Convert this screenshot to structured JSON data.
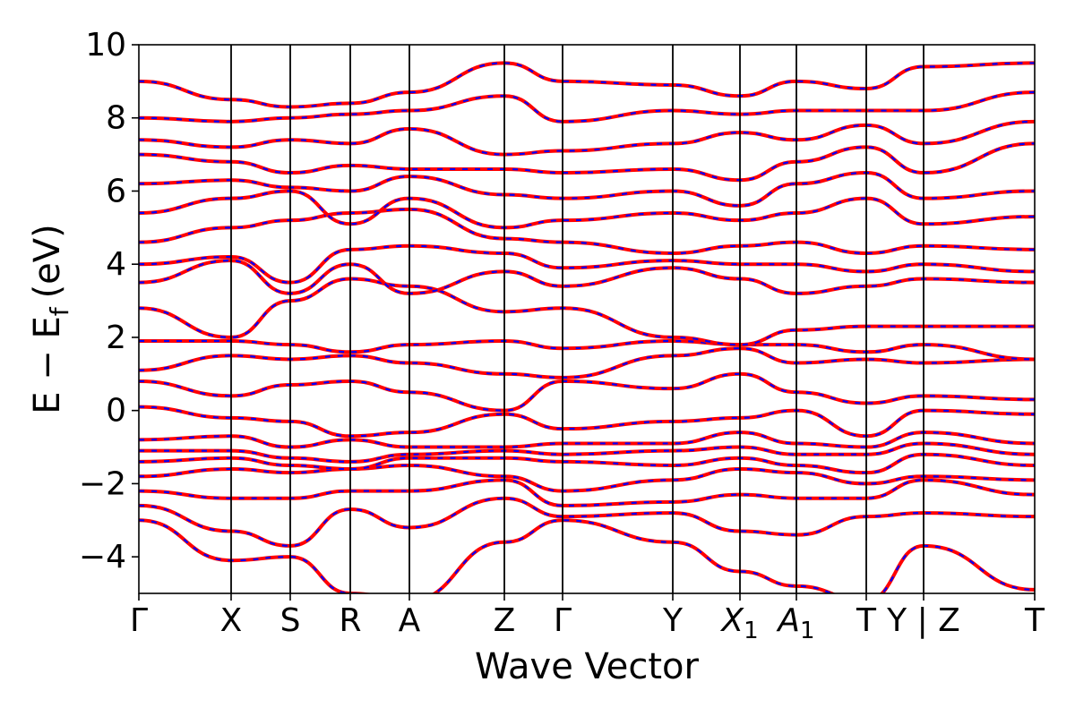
{
  "chart_data": {
    "type": "line",
    "title": "",
    "xlabel": "Wave Vector",
    "ylabel_main": "E − E",
    "ylabel_sub": "f",
    "ylabel_unit": "(eV)",
    "ylim": [
      -5,
      10
    ],
    "yticks": [
      -4,
      -2,
      0,
      2,
      4,
      6,
      8,
      10
    ],
    "ytick_labels": [
      "−4",
      "−2",
      "0",
      "2",
      "4",
      "6",
      "8",
      "10"
    ],
    "xlim": [
      0,
      1
    ],
    "grid": false,
    "legend": "none",
    "kpoints": [
      {
        "label": "Γ",
        "sub": "",
        "x": 0.0
      },
      {
        "label": "X",
        "sub": "",
        "x": 0.103
      },
      {
        "label": "S",
        "sub": "",
        "x": 0.169
      },
      {
        "label": "R",
        "sub": "",
        "x": 0.236
      },
      {
        "label": "A",
        "sub": "",
        "x": 0.302
      },
      {
        "label": "Z",
        "sub": "",
        "x": 0.408
      },
      {
        "label": "Γ",
        "sub": "",
        "x": 0.473
      },
      {
        "label": "Y",
        "sub": "",
        "x": 0.596
      },
      {
        "label": "X",
        "sub": "1",
        "x": 0.671
      },
      {
        "label": "A",
        "sub": "1",
        "x": 0.734
      },
      {
        "label": "T",
        "sub": "",
        "x": 0.812
      },
      {
        "label": "Y | Z",
        "sub": "",
        "x": 0.876
      },
      {
        "label": "T",
        "sub": "",
        "x": 1.0
      }
    ],
    "series_colors": {
      "dft": "#ff0000",
      "model": "#0000ff"
    },
    "bands": [
      {
        "x": [
          0,
          0.103,
          0.169,
          0.236,
          0.302,
          0.408,
          0.473,
          0.596,
          0.671,
          0.734,
          0.812,
          0.876,
          1.0
        ],
        "y": [
          -3.0,
          -4.1,
          -4.0,
          -5.0,
          -5.2,
          -3.6,
          -3.0,
          -3.6,
          -4.4,
          -4.8,
          -5.2,
          -3.7,
          -4.9
        ]
      },
      {
        "x": [
          0,
          0.103,
          0.169,
          0.236,
          0.302,
          0.408,
          0.473,
          0.596,
          0.671,
          0.734,
          0.812,
          0.876,
          1.0
        ],
        "y": [
          -2.6,
          -3.3,
          -3.7,
          -2.7,
          -3.2,
          -2.4,
          -2.9,
          -2.8,
          -3.3,
          -3.4,
          -2.9,
          -2.8,
          -2.9
        ]
      },
      {
        "x": [
          0,
          0.103,
          0.169,
          0.236,
          0.302,
          0.408,
          0.473,
          0.596,
          0.671,
          0.734,
          0.812,
          0.876,
          1.0
        ],
        "y": [
          -2.2,
          -2.4,
          -2.4,
          -2.2,
          -2.2,
          -1.9,
          -2.6,
          -2.5,
          -2.3,
          -2.4,
          -2.4,
          -1.9,
          -2.3
        ]
      },
      {
        "x": [
          0,
          0.103,
          0.169,
          0.236,
          0.302,
          0.408,
          0.473,
          0.596,
          0.671,
          0.734,
          0.812,
          0.876,
          1.0
        ],
        "y": [
          -1.8,
          -1.6,
          -1.7,
          -1.6,
          -1.5,
          -1.8,
          -2.2,
          -1.9,
          -1.6,
          -1.7,
          -2.0,
          -1.8,
          -1.9
        ]
      },
      {
        "x": [
          0,
          0.103,
          0.169,
          0.236,
          0.302,
          0.408,
          0.473,
          0.596,
          0.671,
          0.734,
          0.812,
          0.876,
          1.0
        ],
        "y": [
          -1.4,
          -1.3,
          -1.5,
          -1.6,
          -1.3,
          -1.3,
          -1.4,
          -1.5,
          -1.3,
          -1.5,
          -1.7,
          -1.2,
          -1.5
        ]
      },
      {
        "x": [
          0,
          0.103,
          0.169,
          0.236,
          0.302,
          0.408,
          0.473,
          0.596,
          0.671,
          0.734,
          0.812,
          0.876,
          1.0
        ],
        "y": [
          -1.1,
          -1.1,
          -1.3,
          -1.4,
          -1.2,
          -1.1,
          -1.2,
          -1.1,
          -1.0,
          -1.2,
          -1.2,
          -0.9,
          -1.2
        ]
      },
      {
        "x": [
          0,
          0.103,
          0.169,
          0.236,
          0.302,
          0.408,
          0.473,
          0.596,
          0.671,
          0.734,
          0.812,
          0.876,
          1.0
        ],
        "y": [
          -0.8,
          -0.7,
          -1.0,
          -0.8,
          -1.0,
          -1.0,
          -0.9,
          -0.9,
          -0.6,
          -0.9,
          -1.0,
          -0.6,
          -0.9
        ]
      },
      {
        "x": [
          0,
          0.103,
          0.169,
          0.236,
          0.302,
          0.408,
          0.473,
          0.596,
          0.671,
          0.734,
          0.812,
          0.876,
          1.0
        ],
        "y": [
          0.1,
          -0.2,
          -0.3,
          -0.7,
          -0.6,
          -0.1,
          -0.5,
          -0.3,
          -0.2,
          0.0,
          -0.7,
          0.0,
          -0.1
        ]
      },
      {
        "x": [
          0,
          0.103,
          0.169,
          0.236,
          0.302,
          0.408,
          0.473,
          0.596,
          0.671,
          0.734,
          0.812,
          0.876,
          1.0
        ],
        "y": [
          0.8,
          0.4,
          0.7,
          0.8,
          0.5,
          0.0,
          0.8,
          0.6,
          1.0,
          0.5,
          0.2,
          0.4,
          0.3
        ]
      },
      {
        "x": [
          0,
          0.103,
          0.169,
          0.236,
          0.302,
          0.408,
          0.473,
          0.596,
          0.671,
          0.734,
          0.812,
          0.876,
          1.0
        ],
        "y": [
          1.1,
          1.5,
          1.4,
          1.5,
          1.3,
          1.0,
          0.9,
          1.5,
          1.7,
          1.3,
          1.4,
          1.3,
          1.4
        ]
      },
      {
        "x": [
          0,
          0.103,
          0.169,
          0.236,
          0.302,
          0.408,
          0.473,
          0.596,
          0.671,
          0.734,
          0.812,
          0.876,
          1.0
        ],
        "y": [
          1.9,
          1.9,
          1.8,
          1.6,
          1.8,
          1.9,
          1.7,
          1.9,
          1.8,
          1.8,
          1.6,
          1.8,
          1.4
        ]
      },
      {
        "x": [
          0,
          0.103,
          0.169,
          0.236,
          0.302,
          0.408,
          0.473,
          0.596,
          0.671,
          0.734,
          0.812,
          0.876,
          1.0
        ],
        "y": [
          2.8,
          2.0,
          3.0,
          3.6,
          3.4,
          2.7,
          2.8,
          2.0,
          1.8,
          2.2,
          2.3,
          2.3,
          2.3
        ]
      },
      {
        "x": [
          0,
          0.103,
          0.169,
          0.236,
          0.302,
          0.408,
          0.473,
          0.596,
          0.671,
          0.734,
          0.812,
          0.876,
          1.0
        ],
        "y": [
          3.5,
          4.1,
          3.2,
          4.0,
          3.2,
          3.8,
          3.4,
          3.9,
          3.6,
          3.2,
          3.4,
          3.6,
          3.5
        ]
      },
      {
        "x": [
          0,
          0.103,
          0.169,
          0.236,
          0.302,
          0.408,
          0.473,
          0.596,
          0.671,
          0.734,
          0.812,
          0.876,
          1.0
        ],
        "y": [
          4.0,
          4.2,
          3.5,
          4.4,
          4.5,
          4.3,
          3.9,
          4.1,
          4.0,
          4.0,
          3.8,
          4.0,
          3.8
        ]
      },
      {
        "x": [
          0,
          0.103,
          0.169,
          0.236,
          0.302,
          0.408,
          0.473,
          0.596,
          0.671,
          0.734,
          0.812,
          0.876,
          1.0
        ],
        "y": [
          4.6,
          5.0,
          5.2,
          5.4,
          5.5,
          4.7,
          4.6,
          4.3,
          4.5,
          4.6,
          4.3,
          4.5,
          4.4
        ]
      },
      {
        "x": [
          0,
          0.103,
          0.169,
          0.236,
          0.302,
          0.408,
          0.473,
          0.596,
          0.671,
          0.734,
          0.812,
          0.876,
          1.0
        ],
        "y": [
          5.4,
          5.8,
          6.0,
          5.1,
          5.8,
          5.0,
          5.2,
          5.4,
          5.2,
          5.4,
          5.8,
          5.1,
          5.3
        ]
      },
      {
        "x": [
          0,
          0.103,
          0.169,
          0.236,
          0.302,
          0.408,
          0.473,
          0.596,
          0.671,
          0.734,
          0.812,
          0.876,
          1.0
        ],
        "y": [
          6.2,
          6.3,
          6.1,
          6.0,
          6.4,
          5.9,
          5.8,
          6.0,
          5.6,
          6.2,
          6.5,
          5.8,
          6.0
        ]
      },
      {
        "x": [
          0,
          0.103,
          0.169,
          0.236,
          0.302,
          0.408,
          0.473,
          0.596,
          0.671,
          0.734,
          0.812,
          0.876,
          1.0
        ],
        "y": [
          7.0,
          6.8,
          6.5,
          6.7,
          6.6,
          6.6,
          6.5,
          6.6,
          6.3,
          6.8,
          7.2,
          6.5,
          7.3
        ]
      },
      {
        "x": [
          0,
          0.103,
          0.169,
          0.236,
          0.302,
          0.408,
          0.473,
          0.596,
          0.671,
          0.734,
          0.812,
          0.876,
          1.0
        ],
        "y": [
          7.4,
          7.2,
          7.4,
          7.3,
          7.7,
          7.0,
          7.1,
          7.3,
          7.6,
          7.4,
          7.8,
          7.3,
          7.9
        ]
      },
      {
        "x": [
          0,
          0.103,
          0.169,
          0.236,
          0.302,
          0.408,
          0.473,
          0.596,
          0.671,
          0.734,
          0.812,
          0.876,
          1.0
        ],
        "y": [
          8.0,
          7.9,
          8.0,
          8.1,
          8.2,
          8.6,
          7.9,
          8.2,
          8.1,
          8.2,
          8.2,
          8.2,
          8.7
        ]
      },
      {
        "x": [
          0,
          0.103,
          0.169,
          0.236,
          0.302,
          0.408,
          0.473,
          0.596,
          0.671,
          0.734,
          0.812,
          0.876,
          1.0
        ],
        "y": [
          9.0,
          8.5,
          8.3,
          8.4,
          8.7,
          9.5,
          9.0,
          8.9,
          8.6,
          9.0,
          8.8,
          9.4,
          9.5
        ]
      }
    ]
  }
}
